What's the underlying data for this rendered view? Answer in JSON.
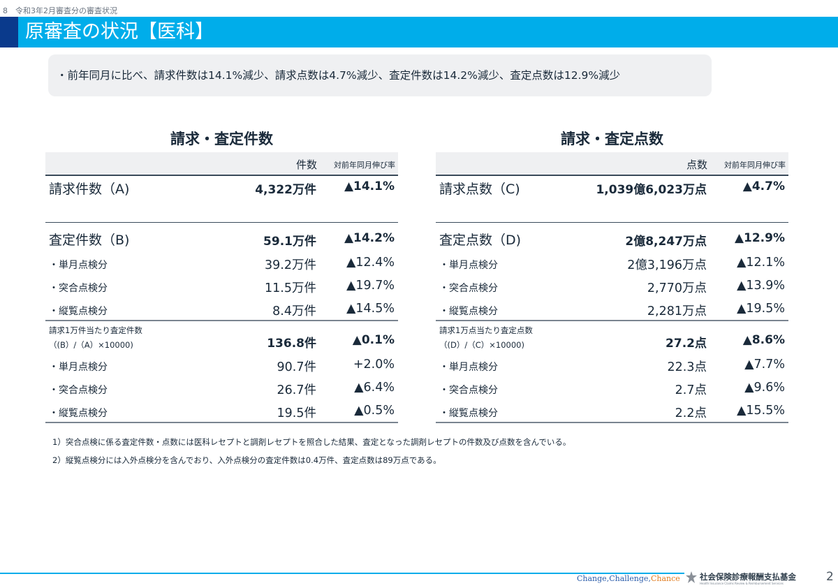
{
  "breadcrumb": "8　令和3年2月審査分の審査状況",
  "page_title": "原審査の状況【医科】",
  "summary": "・前年同月に比べ、請求件数は14.1%減少、請求点数は4.7%減少、査定件数は14.2%減少、査定点数は12.9%減少",
  "left_table": {
    "heading": "請求・査定件数",
    "col_value": "件数",
    "col_yoy": "対前年同月伸び率",
    "rows": [
      {
        "label": "請求件数（A)",
        "value": "4,322万件",
        "yoy": "▲14.1%"
      },
      {
        "label": "査定件数（B)",
        "value": "59.1万件",
        "yoy": "▲14.2%"
      },
      {
        "label": "・単月点検分",
        "value": "39.2万件",
        "yoy": "▲12.4%"
      },
      {
        "label": "・突合点検分",
        "value": "11.5万件",
        "yoy": "▲19.7%"
      },
      {
        "label": "・縦覧点検分",
        "value": "8.4万件",
        "yoy": "▲14.5%"
      },
      {
        "label1": "請求1万件当たり査定件数",
        "label2": "（(B）/（A）×10000)",
        "value": "136.8件",
        "yoy": "▲0.1%"
      },
      {
        "label": "・単月点検分",
        "value": "90.7件",
        "yoy": "+2.0%"
      },
      {
        "label": "・突合点検分",
        "value": "26.7件",
        "yoy": "▲6.4%"
      },
      {
        "label": "・縦覧点検分",
        "value": "19.5件",
        "yoy": "▲0.5%"
      }
    ]
  },
  "right_table": {
    "heading": "請求・査定点数",
    "col_value": "点数",
    "col_yoy": "対前年同月伸び率",
    "rows": [
      {
        "label": "請求点数（C)",
        "value": "1,039億6,023万点",
        "yoy": "▲4.7%"
      },
      {
        "label": "査定点数（D)",
        "value": "2億8,247万点",
        "yoy": "▲12.9%"
      },
      {
        "label": "・単月点検分",
        "value": "2億3,196万点",
        "yoy": "▲12.1%"
      },
      {
        "label": "・突合点検分",
        "value": "2,770万点",
        "yoy": "▲13.9%"
      },
      {
        "label": "・縦覧点検分",
        "value": "2,281万点",
        "yoy": "▲19.5%"
      },
      {
        "label1": "請求1万点当たり査定点数",
        "label2": "（(D）/（C）×10000)",
        "value": "27.2点",
        "yoy": "▲8.6%"
      },
      {
        "label": "・単月点検分",
        "value": "22.3点",
        "yoy": "▲7.7%"
      },
      {
        "label": "・突合点検分",
        "value": "2.7点",
        "yoy": "▲9.6%"
      },
      {
        "label": "・縦覧点検分",
        "value": "2.2点",
        "yoy": "▲15.5%"
      }
    ]
  },
  "notes": [
    "1）突合点検に係る査定件数・点数には医科レセプトと調剤レセプトを照合した結果、査定となった調剤レセプトの件数及び点数を含んでいる。",
    "2）縦覧点検分には入外点検分を含んでおり、入外点検分の査定件数は0.4万件、査定点数は89万点である。"
  ],
  "footer": {
    "tagline_change": "Change,",
    "tagline_challenge": "Challenge,",
    "tagline_chance": "Chance",
    "org_name": "社会保険診療報酬支払基金",
    "org_name_en": "Health Insurance Claims Review & Reimbursement Services",
    "page_number": "2"
  },
  "colors": {
    "title_bar": "#00adea",
    "title_accent": "#0a3a8c",
    "summary_bg": "#eff0f2"
  }
}
